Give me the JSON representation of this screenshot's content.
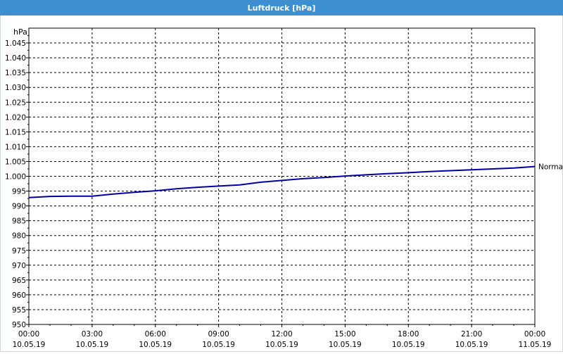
{
  "window": {
    "title": "Luftdruck [hPa]"
  },
  "chart_data": {
    "type": "line",
    "title": "Luftdruck [hPa]",
    "ylabel": "hPa",
    "xlabel": "",
    "ylim": [
      950,
      1050
    ],
    "ytick_step": 5,
    "ytick_labels": [
      "950",
      "955",
      "960",
      "965",
      "970",
      "975",
      "980",
      "985",
      "990",
      "995",
      "1.000",
      "1.005",
      "1.010",
      "1.015",
      "1.020",
      "1.025",
      "1.030",
      "1.035",
      "1.040",
      "1.045"
    ],
    "xlim": [
      0,
      24
    ],
    "xtick_step_hours": 3,
    "xtick_labels": [
      {
        "time": "00:00",
        "date": "10.05.19"
      },
      {
        "time": "03:00",
        "date": "10.05.19"
      },
      {
        "time": "06:00",
        "date": "10.05.19"
      },
      {
        "time": "09:00",
        "date": "10.05.19"
      },
      {
        "time": "12:00",
        "date": "10.05.19"
      },
      {
        "time": "15:00",
        "date": "10.05.19"
      },
      {
        "time": "18:00",
        "date": "10.05.19"
      },
      {
        "time": "21:00",
        "date": "10.05.19"
      },
      {
        "time": "00:00",
        "date": "11.05.19"
      }
    ],
    "grid": true,
    "series": [
      {
        "name": "Normal",
        "color": "#0000aa",
        "x": [
          0,
          1,
          2,
          3,
          4,
          5,
          6,
          7,
          8,
          9,
          10,
          11,
          12,
          13,
          14,
          15,
          16,
          17,
          18,
          19,
          20,
          21,
          22,
          23,
          24
        ],
        "y": [
          992.8,
          993.2,
          993.3,
          993.3,
          994.0,
          994.6,
          995.1,
          995.8,
          996.3,
          996.7,
          997.1,
          998.0,
          998.6,
          999.2,
          999.6,
          1000.1,
          1000.5,
          1000.9,
          1001.2,
          1001.6,
          1001.9,
          1002.2,
          1002.5,
          1002.8,
          1003.3
        ]
      }
    ]
  }
}
